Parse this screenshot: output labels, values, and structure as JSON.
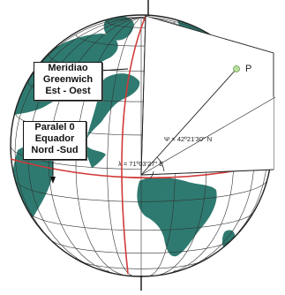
{
  "labels": {
    "meridian": [
      "Meridiao",
      "Greenwich",
      "Est - Oest"
    ],
    "parallel": [
      "Paralel 0",
      "Equador",
      "Nord -Sud"
    ],
    "point": "P",
    "latitude": "Ψ = 42º21'30\" N",
    "longitude": "λ = 71º03'27\" E"
  },
  "colors": {
    "ocean": "#ffffff",
    "land": "#2e7a70",
    "grid": "#333333",
    "equator": "#d23a3a",
    "meridian": "#d23a3a",
    "point": "#b8e0a0"
  }
}
